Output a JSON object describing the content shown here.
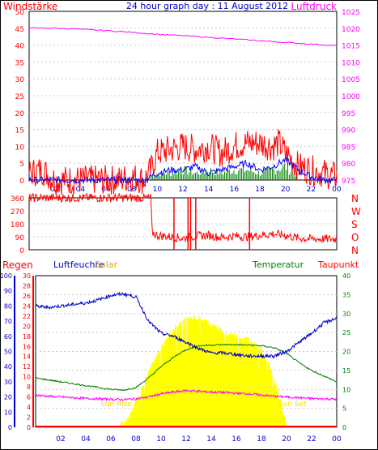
{
  "chart_data": [
    {
      "type": "line",
      "title": "24 hour graph day : 11 August 2012",
      "left_label": "Windstärke",
      "right_label": "Luftdruck",
      "x_ticks": [
        "02",
        "04",
        "06",
        "08",
        "10",
        "12",
        "14",
        "16",
        "18",
        "20",
        "22",
        "00"
      ],
      "y_left_ticks": [
        "50",
        "45",
        "40",
        "35",
        "30",
        "25",
        "20",
        "15",
        "10",
        "5",
        "0"
      ],
      "y_right_ticks": [
        "1025",
        "1020",
        "1015",
        "1010",
        "1005",
        "1000",
        "995",
        "990",
        "985",
        "980",
        "975"
      ],
      "ylim_left": [
        0,
        50
      ],
      "ylim_right": [
        975,
        1025
      ],
      "series": [
        {
          "color": "#ff0000",
          "axis": "left",
          "x": [
            0,
            1,
            2,
            3,
            7,
            8,
            9,
            9.5,
            10,
            11,
            12,
            13,
            14,
            15,
            16,
            17,
            18,
            19,
            19.5,
            20,
            21,
            22,
            23,
            24
          ],
          "y": [
            2,
            3,
            0,
            0,
            0,
            1,
            0,
            3,
            8,
            9,
            10,
            9,
            10,
            8,
            10,
            11,
            11,
            10,
            11,
            8,
            4,
            3,
            2,
            1
          ]
        },
        {
          "color": "#0000ff",
          "axis": "left",
          "x": [
            0,
            8,
            9,
            9.5,
            10,
            11,
            12,
            13,
            14,
            15,
            16,
            17,
            18,
            19,
            20,
            21,
            22,
            23,
            24
          ],
          "y": [
            0,
            0,
            0,
            1,
            2,
            3,
            3,
            4,
            2,
            3,
            4,
            5,
            3,
            4,
            6,
            3,
            1,
            0,
            0
          ]
        },
        {
          "color": "#008000",
          "axis": "left",
          "x": [
            0,
            9,
            9.5,
            10,
            11,
            12,
            13,
            14,
            15,
            16,
            17,
            18,
            19,
            20,
            21,
            24
          ],
          "y": [
            0,
            0,
            1,
            2,
            2,
            3,
            2,
            3,
            2,
            3,
            3,
            2,
            3,
            4,
            1,
            0
          ]
        },
        {
          "color": "#ff00ff",
          "axis": "right",
          "x": [
            0,
            2,
            4,
            6,
            8,
            10,
            12,
            14,
            16,
            18,
            20,
            22,
            24
          ],
          "y": [
            1020,
            1020,
            1019.7,
            1019.3,
            1018.8,
            1018.2,
            1017.8,
            1017.3,
            1016.8,
            1016.3,
            1015.8,
            1015.3,
            1014.8
          ]
        }
      ]
    },
    {
      "type": "line",
      "y_left_ticks": [
        "360",
        "270",
        "180",
        "90",
        "0"
      ],
      "y_right_labels": [
        "N",
        "W",
        "S",
        "O",
        "N"
      ],
      "ylim": [
        0,
        360
      ],
      "series": [
        {
          "color": "#ff0000",
          "x": [
            0,
            9.5,
            9.6,
            10,
            11,
            12,
            13,
            14,
            15,
            16,
            17,
            18,
            19,
            20,
            21,
            22,
            23,
            24
          ],
          "y": [
            360,
            360,
            120,
            100,
            90,
            80,
            95,
            100,
            85,
            95,
            90,
            100,
            110,
            100,
            80,
            75,
            75,
            75
          ]
        }
      ]
    },
    {
      "type": "line",
      "labels": {
        "regen": "Regen",
        "feuchte": "Luftfeuchte",
        "solar": "Solar",
        "temperatur": "Temperatur",
        "taupunkt": "Taupunkt"
      },
      "annotations": [
        "Sun Rise",
        "Sun Set"
      ],
      "y_rain_ticks": [
        "100",
        "90",
        "80",
        "70",
        "60",
        "50",
        "40",
        "30",
        "20",
        "10",
        "0"
      ],
      "y_hum_ticks": [
        "30",
        "28",
        "26",
        "24",
        "22",
        "20",
        "18",
        "16",
        "14",
        "12",
        "10",
        "8",
        "6",
        "4",
        "2",
        "0"
      ],
      "y_temp_ticks": [
        "40",
        "35",
        "30",
        "25",
        "20",
        "15",
        "10",
        "5",
        "0"
      ],
      "x_ticks": [
        "02",
        "04",
        "06",
        "08",
        "10",
        "12",
        "14",
        "16",
        "18",
        "20",
        "22",
        "00"
      ],
      "ylim_hum": [
        0,
        100
      ],
      "ylim_temp": [
        0,
        40
      ],
      "ylim_solar": [
        0,
        900
      ],
      "humidity": {
        "color": "#0000cc",
        "x": [
          0,
          1,
          2,
          3,
          4,
          5,
          6,
          7,
          8,
          9,
          10,
          11,
          12,
          13,
          14,
          15,
          16,
          17,
          18,
          19,
          20,
          21,
          22,
          23,
          24
        ],
        "y": [
          80,
          79,
          80,
          81,
          82,
          84,
          87,
          88,
          86,
          70,
          62,
          60,
          56,
          52,
          49,
          49,
          48,
          47,
          47,
          47,
          50,
          56,
          62,
          69,
          72
        ]
      },
      "temperature": {
        "color": "#008000",
        "x": [
          0,
          1,
          2,
          3,
          4,
          5,
          6,
          7,
          8,
          9,
          10,
          11,
          12,
          13,
          14,
          15,
          16,
          17,
          18,
          19,
          20,
          21,
          22,
          23,
          24
        ],
        "y": [
          13,
          12.5,
          12,
          11.5,
          11,
          10.5,
          10,
          9.8,
          10.5,
          13,
          16,
          18.5,
          20.5,
          21.5,
          21.7,
          21.8,
          21.8,
          21.7,
          21.5,
          21,
          19.5,
          17,
          15,
          13.5,
          12
        ]
      },
      "dewpoint": {
        "color": "#ff00ff",
        "x": [
          0,
          1,
          2,
          3,
          4,
          5,
          6,
          7,
          8,
          9,
          10,
          11,
          12,
          13,
          14,
          15,
          16,
          17,
          18,
          19,
          20,
          21,
          22,
          23,
          24
        ],
        "y": [
          8.5,
          8.2,
          8,
          7.8,
          7.6,
          7.5,
          7.4,
          7.3,
          7.5,
          8,
          8.8,
          9.3,
          9.7,
          9.5,
          9.3,
          9.2,
          9,
          8.8,
          8.5,
          8.2,
          8,
          7.8,
          7.6,
          7.5,
          7.4
        ]
      },
      "solar": {
        "color": "#ffff00",
        "x": [
          0,
          6.5,
          7,
          7.5,
          8,
          9,
          10,
          11,
          12,
          13,
          14,
          15,
          16,
          17,
          18,
          19,
          19.5,
          20,
          24
        ],
        "y": [
          0,
          0,
          20,
          60,
          150,
          320,
          470,
          580,
          640,
          650,
          610,
          560,
          540,
          520,
          460,
          300,
          150,
          0,
          0
        ]
      },
      "rain": {
        "color": "#ff0000",
        "x": [
          0,
          24
        ],
        "y": [
          0,
          0
        ]
      }
    }
  ]
}
